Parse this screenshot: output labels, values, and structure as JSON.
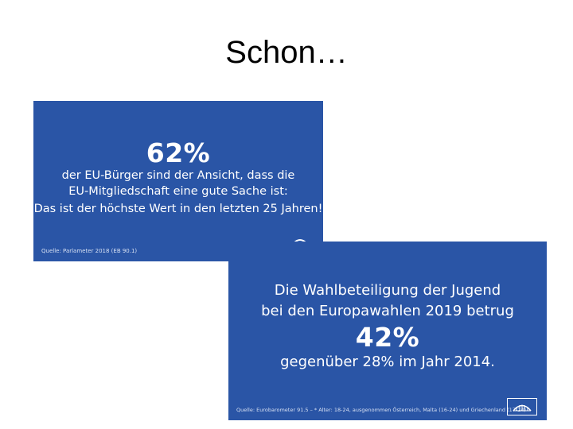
{
  "slide": {
    "title": "Schon…"
  },
  "card1": {
    "headline": "62%",
    "line1": "der EU-Bürger sind der Ansicht, dass die",
    "line2": "EU-Mitgliedschaft eine gute Sache ist:",
    "line3": "Das ist der höchste Wert in den letzten 25 Jahren!",
    "source": "Quelle: Parlameter 2018 (EB 90.1)"
  },
  "card2": {
    "line1": "Die Wahlbeteiligung der Jugend",
    "line2": "bei den Europawahlen 2019 betrug",
    "headline": "42%",
    "line3": "gegenüber 28% im Jahr 2014.",
    "source": "Quelle: Eurobarometer 91.5 – * Alter: 18-24, ausgenommen Österreich, Malta (16-24) und Griechenland (17-24)",
    "logo_icon": "european-parliament-logo-icon"
  },
  "colors": {
    "card_background": "#2a55a6",
    "card_text": "#ffffff",
    "page_background": "#ffffff"
  }
}
